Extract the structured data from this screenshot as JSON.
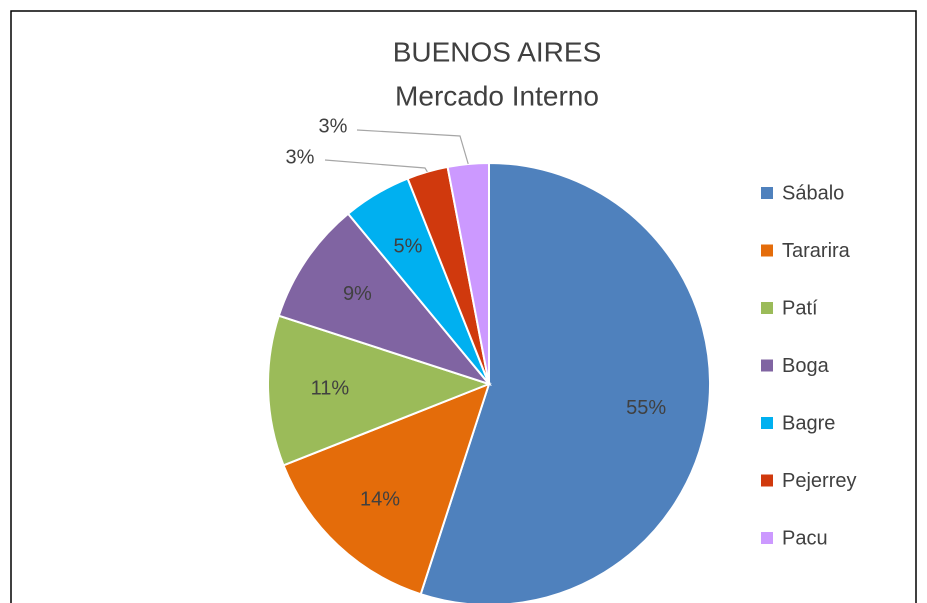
{
  "chart_data": {
    "type": "pie",
    "title": "BUENOS AIRES",
    "subtitle": "Mercado Interno",
    "categories": [
      "Sábalo",
      "Tararira",
      "Patí",
      "Boga",
      "Bagre",
      "Pejerrey",
      "Pacu"
    ],
    "values": [
      55,
      14,
      11,
      9,
      5,
      3,
      3
    ],
    "value_labels": [
      "55%",
      "14%",
      "11%",
      "9%",
      "5%",
      "3%",
      "3%"
    ],
    "colors": [
      "#4f81bd",
      "#e46c0a",
      "#9bbb59",
      "#8064a2",
      "#00b0f0",
      "#d0390d",
      "#cc99ff"
    ],
    "legend": "right"
  }
}
